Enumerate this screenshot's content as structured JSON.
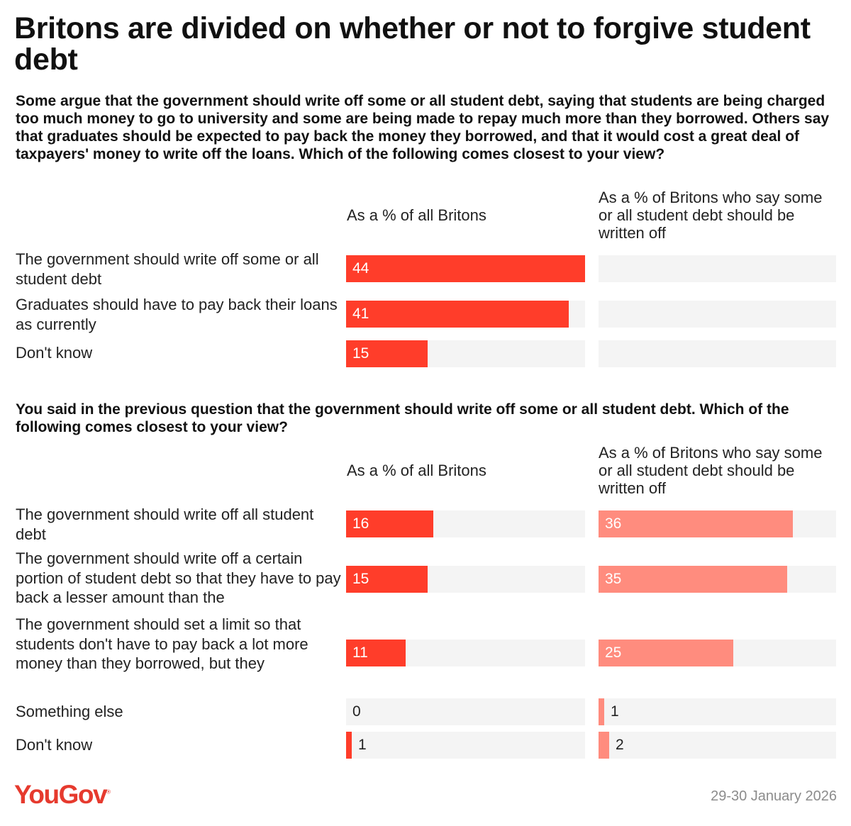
{
  "title": "Britons are divided on whether or not to forgive student debt",
  "brand": "YouGov",
  "date": "29-30 January 2026",
  "colors": {
    "primary_bar": "#ff3d2a",
    "secondary_bar": "#ff8c7e",
    "track": "#f4f4f4",
    "logo": "#e63a2e"
  },
  "col1_label": "As a % of all Britons",
  "col2_label": "As a % of Britons who say some or all student debt should be written off",
  "question1": "Some argue that the government should write off some or all student debt, saying that students are being charged too much money to go to university and some are being made to repay much more than they borrowed. Others say that graduates should be expected to pay back the money they borrowed, and that it would cost a great deal of taxpayers' money to write off the loans. Which of the following comes closest to your view?",
  "question2": "You said in the previous question that the government should write off some or all student debt. Which of the following comes closest to your view?",
  "chart_data": [
    {
      "type": "bar",
      "orientation": "horizontal",
      "categories": [
        "The government should write off some or all student debt",
        "Graduates should have to pay back their loans as currently",
        "Don't know"
      ],
      "series": [
        {
          "name": "As a % of all Britons",
          "values": [
            44,
            41,
            15
          ]
        },
        {
          "name": "As a % of Britons who say some or all student debt should be written off",
          "values": [
            null,
            null,
            null
          ]
        }
      ],
      "xlim": [
        0,
        44
      ]
    },
    {
      "type": "bar",
      "orientation": "horizontal",
      "categories": [
        "The government should write off all student debt",
        "The government should write off a certain portion of student debt so that they have to pay back a lesser amount than the",
        "The government should set a limit so that students don't have to pay back a lot more money than they borrowed, but they",
        "Something else",
        "Don't know"
      ],
      "series": [
        {
          "name": "As a % of all Britons",
          "values": [
            16,
            15,
            11,
            0,
            1
          ]
        },
        {
          "name": "As a % of Britons who say some or all student debt should be written off",
          "values": [
            36,
            35,
            25,
            1,
            2
          ]
        }
      ],
      "xlim": [
        0,
        44
      ]
    }
  ]
}
